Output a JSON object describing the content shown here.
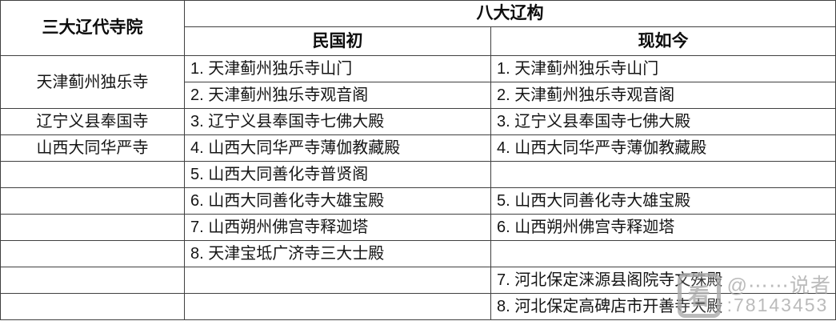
{
  "table": {
    "corner_header": "三大辽代寺院",
    "span_header": "八大辽构",
    "sub_header_left": "民国初",
    "sub_header_right": "现如今",
    "temple_groups": {
      "group1": "天津蓟州独乐寺",
      "group2": "辽宁义县奉国寺",
      "group3": "山西大同华严寺"
    },
    "rows": [
      {
        "minguo": "1. 天津蓟州独乐寺山门",
        "now": "1. 天津蓟州独乐寺山门"
      },
      {
        "minguo": "2. 天津蓟州独乐寺观音阁",
        "now": "2. 天津蓟州独乐寺观音阁"
      },
      {
        "minguo": "3. 辽宁义县奉国寺七佛大殿",
        "now": "3. 辽宁义县奉国寺七佛大殿"
      },
      {
        "minguo": "4. 山西大同华严寺薄伽教藏殿",
        "now": "4. 山西大同华严寺薄伽教藏殿"
      },
      {
        "minguo": "5. 山西大同善化寺普贤阁",
        "now": ""
      },
      {
        "minguo": "6. 山西大同善化寺大雄宝殿",
        "now": "5. 山西大同善化寺大雄宝殿"
      },
      {
        "minguo": "7. 山西朔州佛宫寺释迦塔",
        "now": "6. 山西朔州佛宫寺释迦塔"
      },
      {
        "minguo": "8. 天津宝坻广济寺三大士殿",
        "now": ""
      },
      {
        "minguo": "",
        "now": "7. 河北保定涞源县阁院寺文殊殿"
      },
      {
        "minguo": "",
        "now": "8. 河北保定高碑店市开善寺大殿"
      }
    ]
  },
  "watermark": {
    "logo_glyph": "看",
    "line1": "@⋯⋯说者",
    "line2": ":78143453"
  }
}
